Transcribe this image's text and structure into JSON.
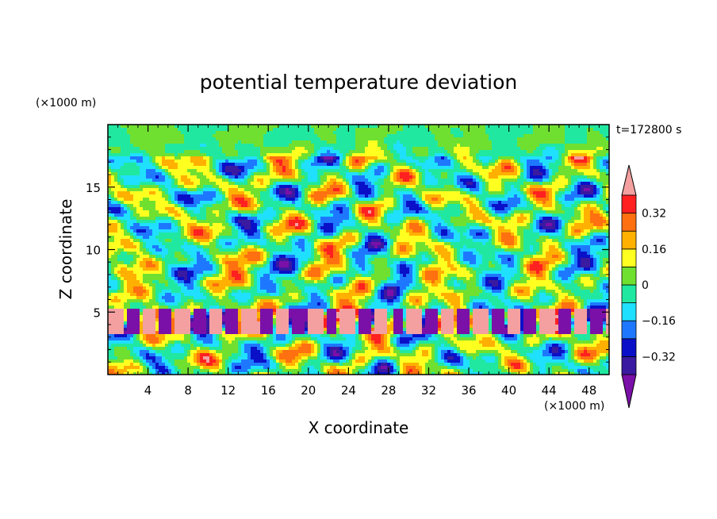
{
  "chart_data": {
    "type": "heatmap",
    "title": "potential temperature deviation",
    "xlabel": "X coordinate",
    "ylabel": "Z coordinate",
    "x_unit": "(×1000 m)",
    "y_unit": "(×1000 m)",
    "time_label": "t=172800 s",
    "xlim": [
      0,
      50
    ],
    "ylim": [
      0,
      20
    ],
    "x_ticks": [
      4,
      8,
      12,
      16,
      20,
      24,
      28,
      32,
      36,
      40,
      44,
      48
    ],
    "x_tick_labels": [
      "4",
      "8",
      "12",
      "16",
      "20",
      "24",
      "28",
      "32",
      "36",
      "40",
      "44",
      "48"
    ],
    "y_ticks": [
      5,
      10,
      15
    ],
    "y_tick_labels": [
      "5",
      "10",
      "15"
    ],
    "colorbar": {
      "levels": [
        -0.4,
        -0.32,
        -0.24,
        -0.16,
        -0.08,
        0,
        0.08,
        0.16,
        0.24,
        0.32,
        0.4
      ],
      "labeled_levels": [
        0.32,
        0.16,
        0,
        -0.16,
        -0.32
      ],
      "labels": [
        "0.32",
        "0.16",
        "0",
        "−0.16",
        "−0.32"
      ],
      "colors": [
        "#7b10a8",
        "#3a1aa0",
        "#0a10c8",
        "#1e78ff",
        "#20e0ff",
        "#20e8a0",
        "#70e030",
        "#ffff20",
        "#ffb000",
        "#ff7010",
        "#ff2020",
        "#f4a0a0"
      ],
      "extend": "both"
    }
  }
}
